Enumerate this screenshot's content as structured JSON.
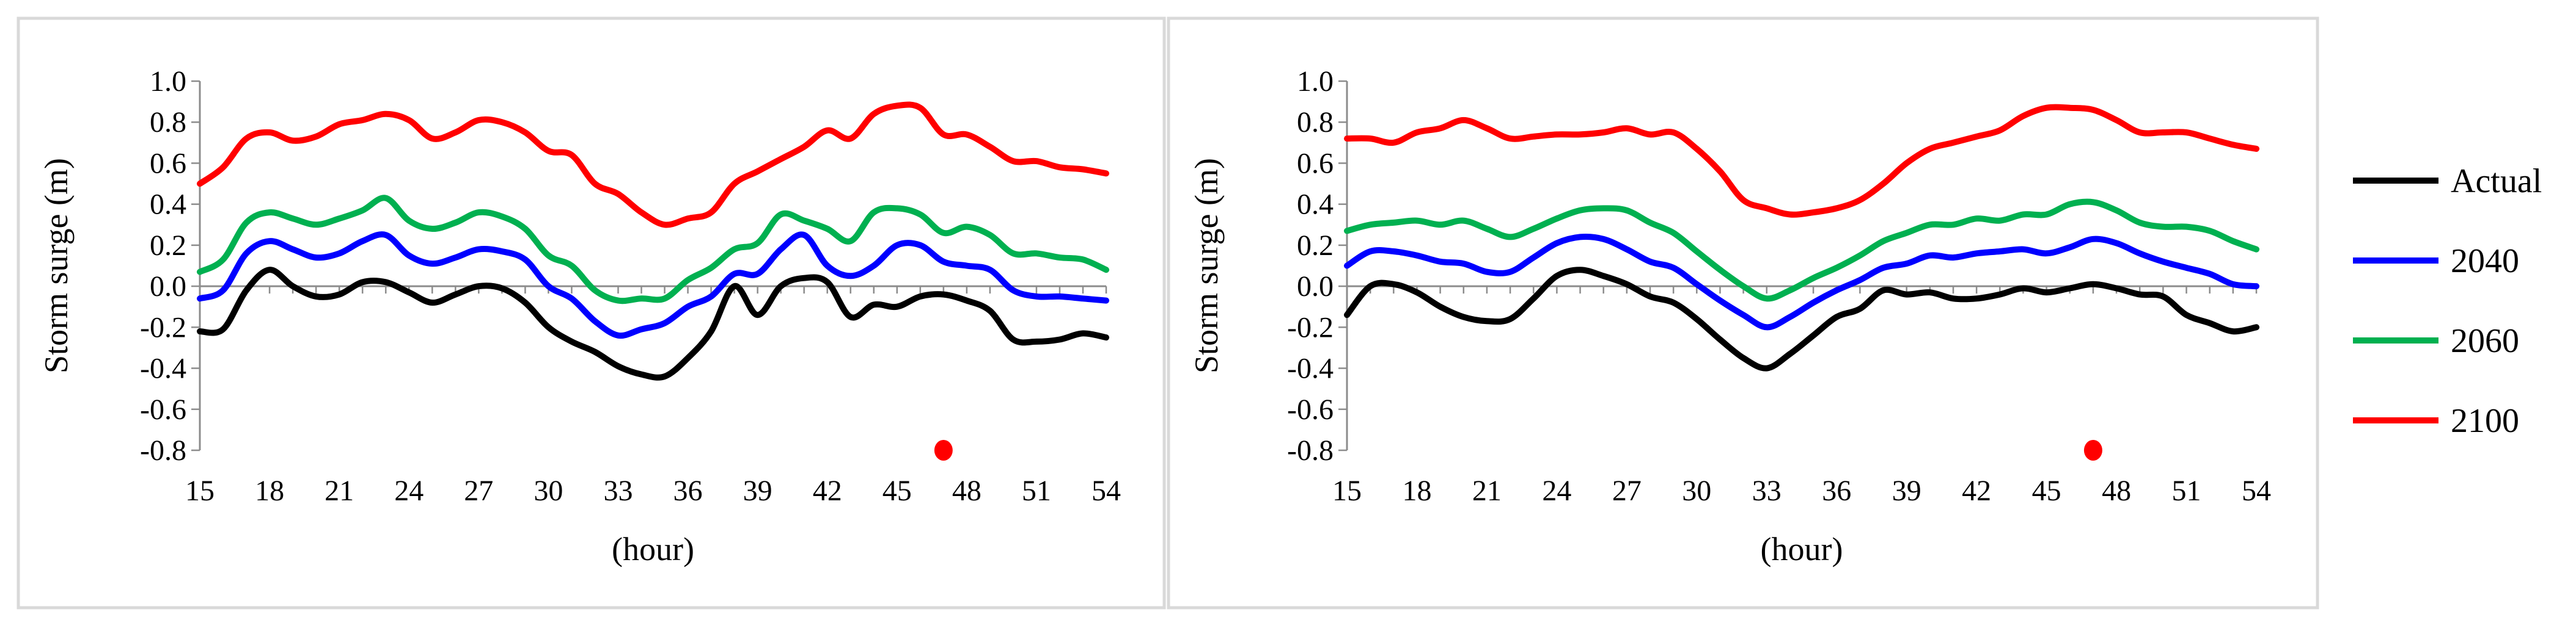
{
  "chart_data": [
    {
      "type": "line",
      "title": "",
      "xlabel": "(hour)",
      "ylabel": "Storm surge (m)",
      "xlim": [
        15,
        54
      ],
      "ylim": [
        -0.8,
        1.0
      ],
      "xticks": [
        "15",
        "18",
        "21",
        "24",
        "27",
        "30",
        "33",
        "36",
        "39",
        "42",
        "45",
        "48",
        "51",
        "54"
      ],
      "yticks": [
        "1.0",
        "0.8",
        "0.6",
        "0.4",
        "0.2",
        "0.0",
        "-0.2",
        "-0.4",
        "-0.6",
        "-0.8"
      ],
      "x": [
        15,
        16,
        17,
        18,
        19,
        20,
        21,
        22,
        23,
        24,
        25,
        26,
        27,
        28,
        29,
        30,
        31,
        32,
        33,
        34,
        35,
        36,
        37,
        38,
        39,
        40,
        41,
        42,
        43,
        44,
        45,
        46,
        47,
        48,
        49,
        50,
        51,
        52,
        53,
        54
      ],
      "series": [
        {
          "name": "Actual",
          "color": "#000000",
          "values": [
            -0.22,
            -0.21,
            -0.02,
            0.08,
            0.0,
            -0.05,
            -0.04,
            0.02,
            0.02,
            -0.03,
            -0.08,
            -0.04,
            0.0,
            -0.01,
            -0.08,
            -0.2,
            -0.27,
            -0.32,
            -0.39,
            -0.43,
            -0.44,
            -0.35,
            -0.22,
            0.0,
            -0.14,
            0.0,
            0.04,
            0.02,
            -0.15,
            -0.09,
            -0.1,
            -0.05,
            -0.04,
            -0.07,
            -0.12,
            -0.26,
            -0.27,
            -0.26,
            -0.23,
            -0.25
          ]
        },
        {
          "name": "2040",
          "color": "#0000ff",
          "values": [
            -0.06,
            -0.02,
            0.16,
            0.22,
            0.18,
            0.14,
            0.16,
            0.22,
            0.25,
            0.15,
            0.11,
            0.14,
            0.18,
            0.17,
            0.13,
            0.0,
            -0.06,
            -0.17,
            -0.24,
            -0.21,
            -0.18,
            -0.1,
            -0.05,
            0.06,
            0.06,
            0.18,
            0.25,
            0.1,
            0.05,
            0.1,
            0.2,
            0.2,
            0.12,
            0.1,
            0.08,
            -0.02,
            -0.05,
            -0.05,
            -0.06,
            -0.07
          ]
        },
        {
          "name": "2060",
          "color": "#00b050",
          "values": [
            0.07,
            0.13,
            0.31,
            0.36,
            0.33,
            0.3,
            0.33,
            0.37,
            0.43,
            0.32,
            0.28,
            0.31,
            0.36,
            0.34,
            0.28,
            0.15,
            0.1,
            -0.02,
            -0.07,
            -0.06,
            -0.06,
            0.03,
            0.09,
            0.18,
            0.21,
            0.35,
            0.32,
            0.28,
            0.22,
            0.36,
            0.38,
            0.35,
            0.26,
            0.29,
            0.25,
            0.16,
            0.16,
            0.14,
            0.13,
            0.08
          ]
        },
        {
          "name": "2100",
          "color": "#ff0000",
          "values": [
            0.5,
            0.58,
            0.72,
            0.75,
            0.71,
            0.73,
            0.79,
            0.81,
            0.84,
            0.81,
            0.72,
            0.75,
            0.81,
            0.8,
            0.75,
            0.66,
            0.64,
            0.5,
            0.45,
            0.36,
            0.3,
            0.33,
            0.36,
            0.5,
            0.56,
            0.62,
            0.68,
            0.76,
            0.72,
            0.84,
            0.88,
            0.87,
            0.74,
            0.74,
            0.68,
            0.61,
            0.61,
            0.58,
            0.57,
            0.55
          ]
        }
      ],
      "marker": {
        "x": 47,
        "y": -0.8,
        "color": "#ff0000"
      }
    },
    {
      "type": "line",
      "title": "",
      "xlabel": "(hour)",
      "ylabel": "Storm surge (m)",
      "xlim": [
        15,
        54
      ],
      "ylim": [
        -0.8,
        1.0
      ],
      "xticks": [
        "15",
        "18",
        "21",
        "24",
        "27",
        "30",
        "33",
        "36",
        "39",
        "42",
        "45",
        "48",
        "51",
        "54"
      ],
      "yticks": [
        "1.0",
        "0.8",
        "0.6",
        "0.4",
        "0.2",
        "0.0",
        "-0.2",
        "-0.4",
        "-0.6",
        "-0.8"
      ],
      "x": [
        15,
        16,
        17,
        18,
        19,
        20,
        21,
        22,
        23,
        24,
        25,
        26,
        27,
        28,
        29,
        30,
        31,
        32,
        33,
        34,
        35,
        36,
        37,
        38,
        39,
        40,
        41,
        42,
        43,
        44,
        45,
        46,
        47,
        48,
        49,
        50,
        51,
        52,
        53,
        54
      ],
      "series": [
        {
          "name": "Actual",
          "color": "#000000",
          "values": [
            -0.14,
            0.0,
            0.01,
            -0.03,
            -0.1,
            -0.15,
            -0.17,
            -0.16,
            -0.06,
            0.05,
            0.08,
            0.05,
            0.01,
            -0.05,
            -0.08,
            -0.16,
            -0.26,
            -0.35,
            -0.4,
            -0.33,
            -0.24,
            -0.15,
            -0.11,
            -0.02,
            -0.04,
            -0.03,
            -0.06,
            -0.06,
            -0.04,
            -0.01,
            -0.03,
            -0.01,
            0.01,
            -0.01,
            -0.04,
            -0.05,
            -0.14,
            -0.18,
            -0.22,
            -0.2
          ]
        },
        {
          "name": "2040",
          "color": "#0000ff",
          "values": [
            0.1,
            0.17,
            0.17,
            0.15,
            0.12,
            0.11,
            0.07,
            0.07,
            0.14,
            0.21,
            0.24,
            0.23,
            0.18,
            0.12,
            0.09,
            0.01,
            -0.07,
            -0.14,
            -0.2,
            -0.15,
            -0.08,
            -0.02,
            0.03,
            0.09,
            0.11,
            0.15,
            0.14,
            0.16,
            0.17,
            0.18,
            0.16,
            0.19,
            0.23,
            0.21,
            0.16,
            0.12,
            0.09,
            0.06,
            0.01,
            0.0
          ]
        },
        {
          "name": "2060",
          "color": "#00b050",
          "values": [
            0.27,
            0.3,
            0.31,
            0.32,
            0.3,
            0.32,
            0.28,
            0.24,
            0.28,
            0.33,
            0.37,
            0.38,
            0.37,
            0.31,
            0.26,
            0.17,
            0.08,
            0.0,
            -0.06,
            -0.02,
            0.04,
            0.09,
            0.15,
            0.22,
            0.26,
            0.3,
            0.3,
            0.33,
            0.32,
            0.35,
            0.35,
            0.4,
            0.41,
            0.37,
            0.31,
            0.29,
            0.29,
            0.27,
            0.22,
            0.18
          ]
        },
        {
          "name": "2100",
          "color": "#ff0000",
          "values": [
            0.72,
            0.72,
            0.7,
            0.75,
            0.77,
            0.81,
            0.77,
            0.72,
            0.73,
            0.74,
            0.74,
            0.75,
            0.77,
            0.74,
            0.75,
            0.67,
            0.56,
            0.42,
            0.38,
            0.35,
            0.36,
            0.38,
            0.42,
            0.5,
            0.6,
            0.67,
            0.7,
            0.73,
            0.76,
            0.83,
            0.87,
            0.87,
            0.86,
            0.81,
            0.75,
            0.75,
            0.75,
            0.72,
            0.69,
            0.67
          ]
        }
      ],
      "marker": {
        "x": 47,
        "y": -0.8,
        "color": "#ff0000"
      }
    }
  ],
  "legend": {
    "placement": "right",
    "items": [
      {
        "name": "Actual",
        "color": "#000000"
      },
      {
        "name": "2040",
        "color": "#0000ff"
      },
      {
        "name": "2060",
        "color": "#00b050"
      },
      {
        "name": "2100",
        "color": "#ff0000"
      }
    ]
  }
}
